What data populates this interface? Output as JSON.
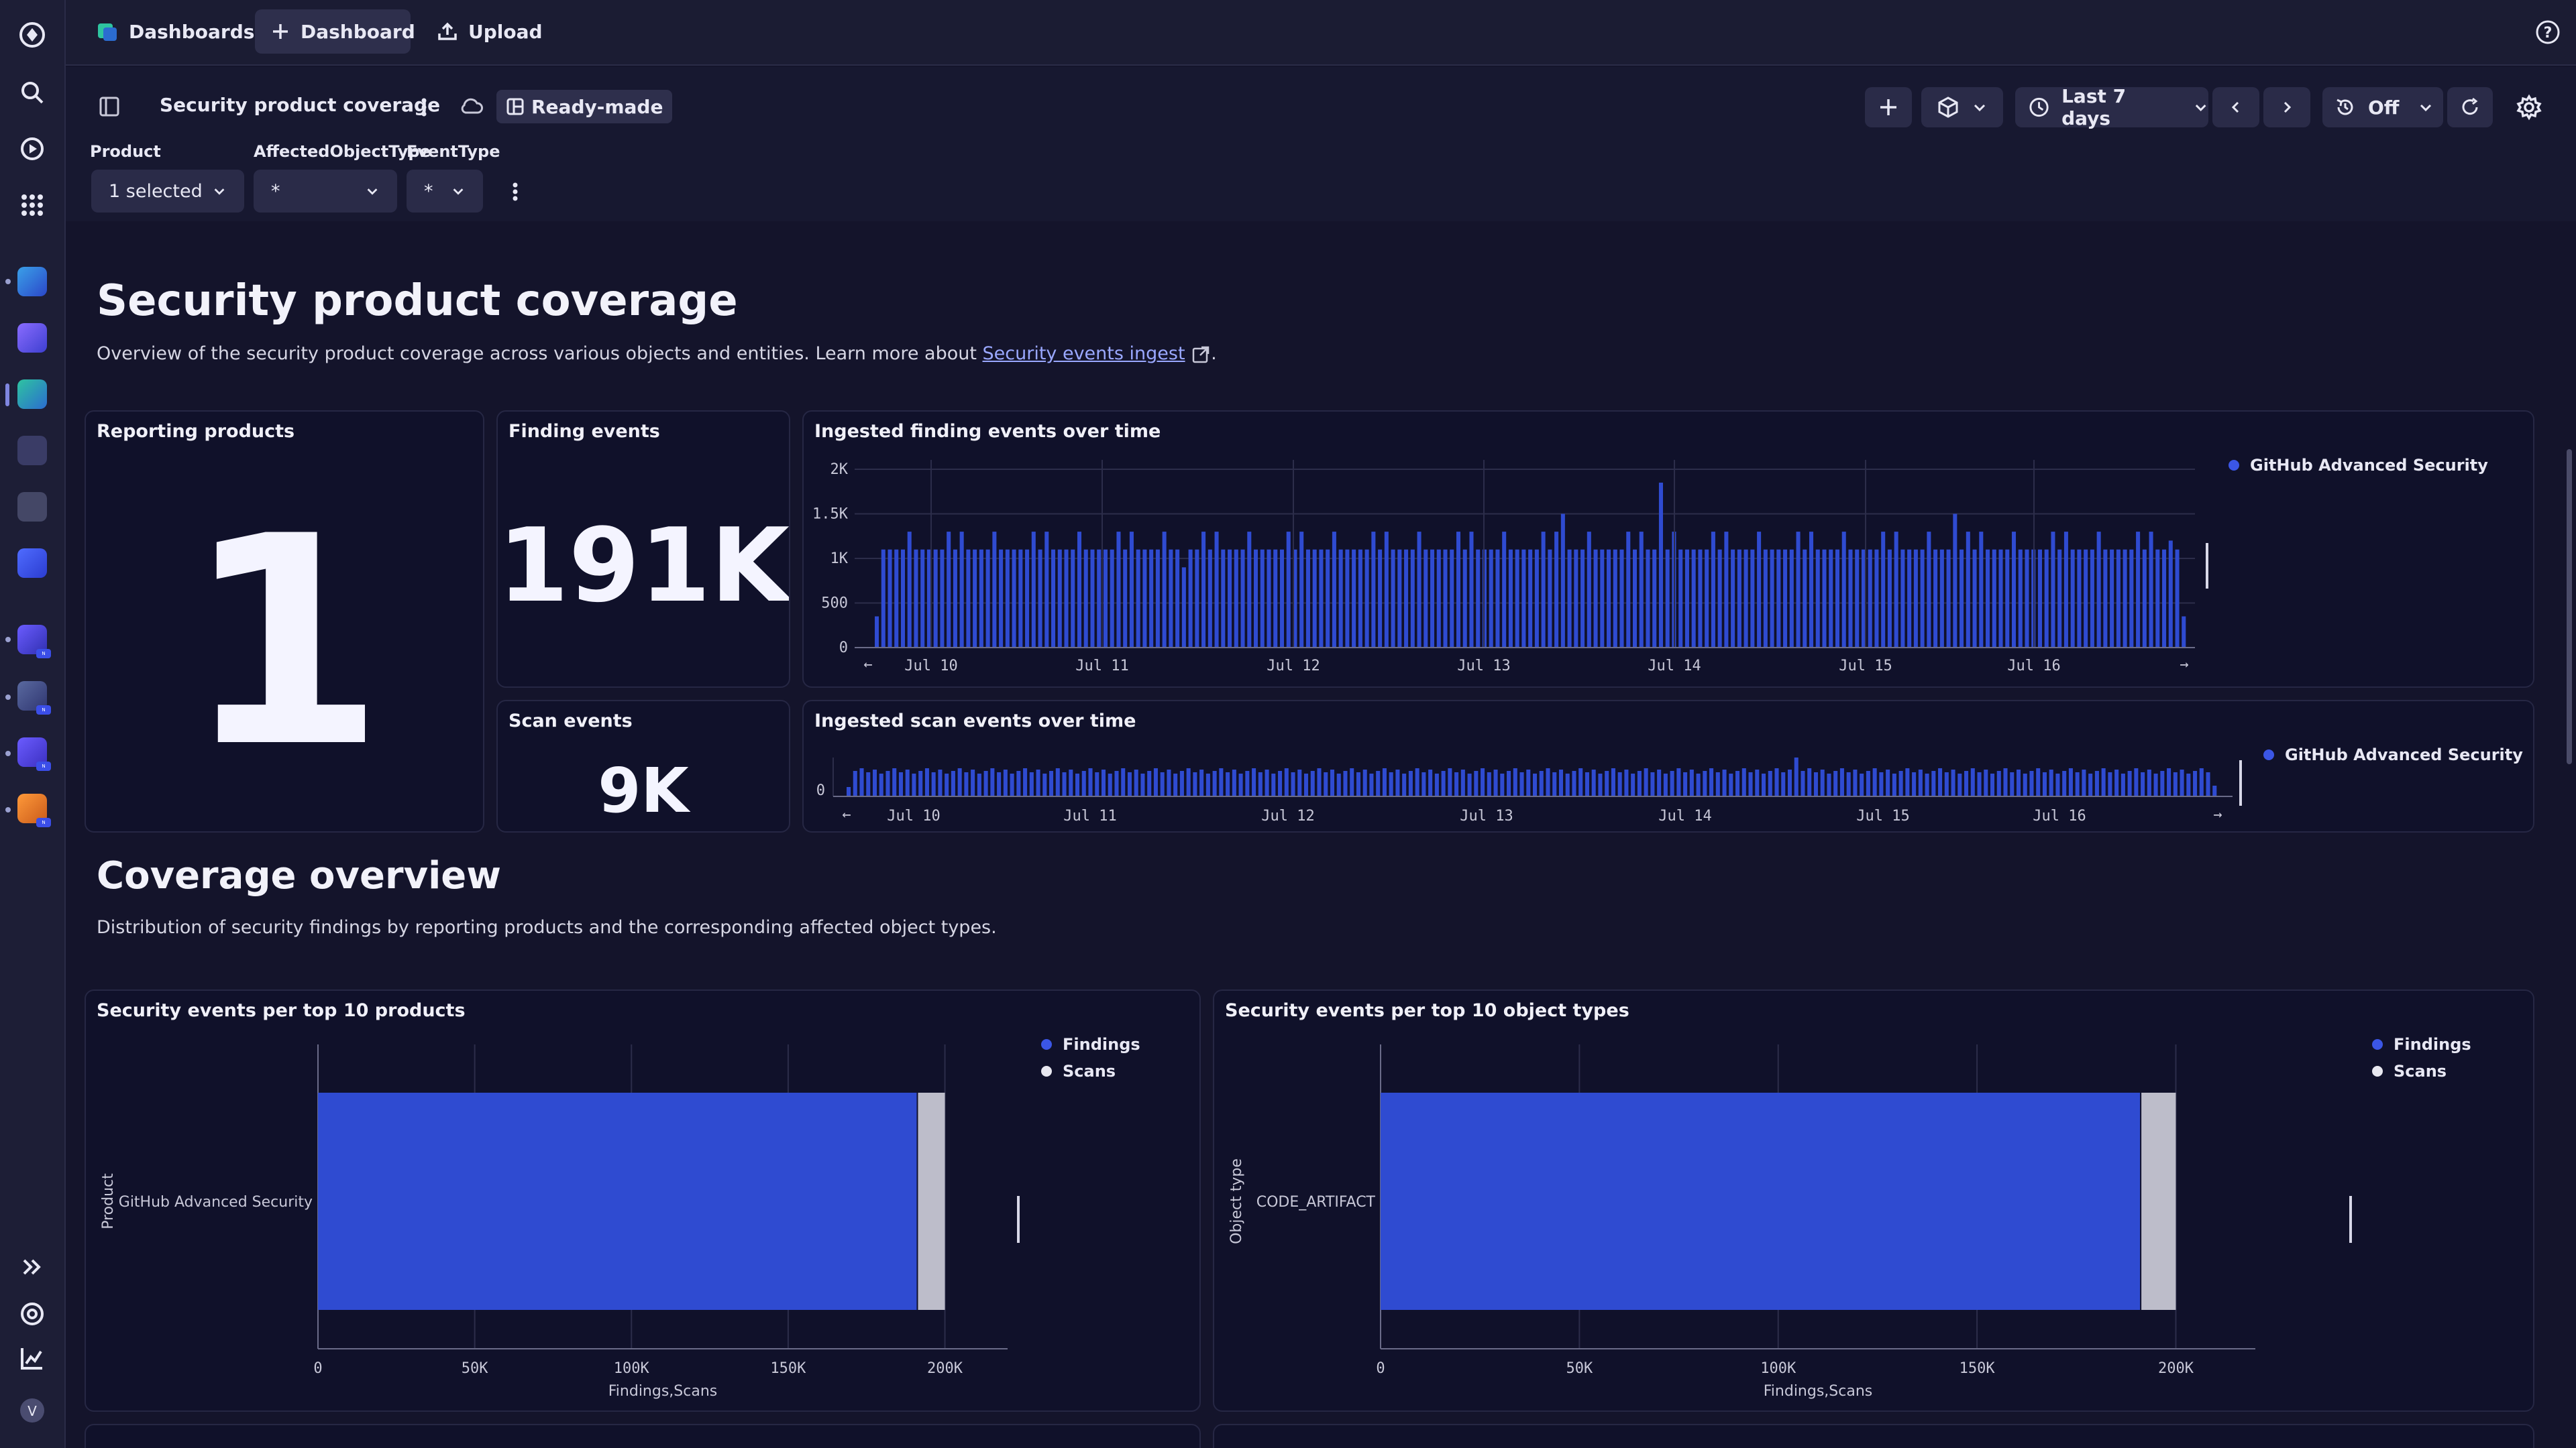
{
  "topbar": {
    "dashboards_label": "Dashboards",
    "new_dashboard_label": "Dashboard",
    "upload_label": "Upload"
  },
  "dashboard": {
    "name": "Security product coverage",
    "badge": "Ready-made",
    "timeframe": "Last 7 days",
    "refresh": "Off"
  },
  "variables": [
    {
      "label": "Product",
      "value": "1 selected"
    },
    {
      "label": "AffectedObjectType",
      "value": "*"
    },
    {
      "label": "EventType",
      "value": "*"
    }
  ],
  "header": {
    "title": "Security product coverage",
    "description_prefix": "Overview of the security product coverage across various objects and entities. Learn more about ",
    "link_text": "Security events ingest",
    "description_suffix": "."
  },
  "tiles": {
    "reporting_products": {
      "title": "Reporting products",
      "value": "1"
    },
    "finding_events": {
      "title": "Finding events",
      "value": "191K"
    },
    "scan_events": {
      "title": "Scan events",
      "value": "9K"
    },
    "findings_over_time": {
      "title": "Ingested finding events over time"
    },
    "scans_over_time": {
      "title": "Ingested scan events over time"
    },
    "per_product": {
      "title": "Security events per top 10 products"
    },
    "per_object_type": {
      "title": "Security events per top 10 object types"
    }
  },
  "coverage": {
    "title": "Coverage overview",
    "description": "Distribution of security findings by reporting products and the corresponding affected object types."
  },
  "colors": {
    "findings": "#2f4bd1",
    "scans": "#bdbdca",
    "accent": "#3b56e6"
  },
  "chart_data": [
    {
      "type": "bar",
      "title": "Ingested finding events over time",
      "x_ticks": [
        "Jul 10",
        "Jul 11",
        "Jul 12",
        "Jul 13",
        "Jul 14",
        "Jul 15",
        "Jul 16"
      ],
      "y_ticks": [
        "2K",
        "1.5K",
        "1K",
        "500",
        "0"
      ],
      "ylim": [
        0,
        2000
      ],
      "series": [
        {
          "name": "GitHub Advanced Security"
        }
      ],
      "bar_pattern": [
        1300,
        1100,
        1100,
        1100,
        1100,
        1300,
        1100,
        1100,
        1100,
        1100,
        1100,
        1300,
        1100
      ],
      "special_bars": {
        "0": 350,
        "1": 1100,
        "47": 900,
        "105": 1500,
        "120": 1850,
        "165": 1500,
        "198": 1200,
        "200": 350
      },
      "legend_position": "top-right",
      "grid": true
    },
    {
      "type": "bar",
      "title": "Ingested scan events over time",
      "x_ticks": [
        "Jul 10",
        "Jul 11",
        "Jul 12",
        "Jul 13",
        "Jul 14",
        "Jul 15",
        "Jul 16"
      ],
      "y_ticks": [
        "0"
      ],
      "series": [
        {
          "name": "GitHub Advanced Security"
        }
      ],
      "legend_position": "top-right"
    },
    {
      "type": "bar",
      "orientation": "horizontal",
      "title": "Security events per top 10 products",
      "categories": [
        "GitHub Advanced Security"
      ],
      "series": [
        {
          "name": "Findings",
          "values": [
            191000
          ]
        },
        {
          "name": "Scans",
          "values": [
            9000
          ]
        }
      ],
      "x_ticks": [
        "0",
        "50K",
        "100K",
        "150K",
        "200K"
      ],
      "xlim": [
        0,
        220000
      ],
      "xlabel": "Findings,Scans",
      "ylabel": "Product",
      "stacked": true
    },
    {
      "type": "bar",
      "orientation": "horizontal",
      "title": "Security events per top 10 object types",
      "categories": [
        "CODE_ARTIFACT"
      ],
      "series": [
        {
          "name": "Findings",
          "values": [
            191000
          ]
        },
        {
          "name": "Scans",
          "values": [
            9000
          ]
        }
      ],
      "x_ticks": [
        "0",
        "50K",
        "100K",
        "150K",
        "200K"
      ],
      "xlim": [
        0,
        220000
      ],
      "xlabel": "Findings,Scans",
      "ylabel": "Object type",
      "stacked": true
    }
  ]
}
